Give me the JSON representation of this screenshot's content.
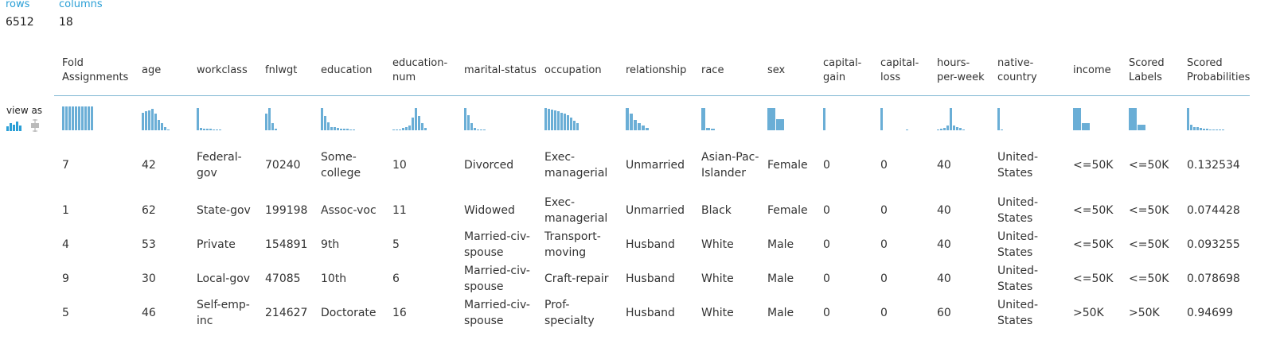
{
  "stats": [
    {
      "label": "rows",
      "value": "6512"
    },
    {
      "label": "columns",
      "value": "18"
    }
  ],
  "view_as": {
    "label": "view as",
    "icons": [
      "histogram-icon",
      "boxplot-icon"
    ]
  },
  "accent_color": "#2a9fd6",
  "bar_color": "#6aaed6",
  "columns": [
    {
      "name": "Fold Assignments",
      "hist": [
        1,
        1,
        1,
        1,
        1,
        1,
        1,
        1,
        1,
        1
      ],
      "bw": 3
    },
    {
      "name": "age",
      "hist": [
        0.75,
        0.8,
        0.85,
        0.9,
        0.7,
        0.45,
        0.3,
        0.15,
        0.05
      ],
      "bw": 3
    },
    {
      "name": "workclass",
      "hist": [
        0.95,
        0.1,
        0.08,
        0.07,
        0.06,
        0.05,
        0.04,
        0.04
      ],
      "bw": 3
    },
    {
      "name": "fnlwgt",
      "hist": [
        0.7,
        0.95,
        0.3,
        0.08
      ],
      "bw": 3
    },
    {
      "name": "education",
      "hist": [
        0.95,
        0.6,
        0.35,
        0.15,
        0.12,
        0.1,
        0.08,
        0.07,
        0.06,
        0.05,
        0.05
      ],
      "bw": 3
    },
    {
      "name": "education-num",
      "hist": [
        0.02,
        0.03,
        0.05,
        0.1,
        0.15,
        0.2,
        0.55,
        0.95,
        0.6,
        0.3,
        0.1
      ],
      "bw": 3
    },
    {
      "name": "marital-status",
      "hist": [
        0.95,
        0.65,
        0.3,
        0.1,
        0.05,
        0.04,
        0.03
      ],
      "bw": 3
    },
    {
      "name": "occupation",
      "hist": [
        0.95,
        0.9,
        0.88,
        0.85,
        0.8,
        0.75,
        0.7,
        0.65,
        0.55,
        0.4,
        0.3
      ],
      "bw": 3
    },
    {
      "name": "relationship",
      "hist": [
        0.95,
        0.7,
        0.45,
        0.3,
        0.2,
        0.1
      ],
      "bw": 4
    },
    {
      "name": "race",
      "hist": [
        0.95,
        0.1,
        0.06
      ],
      "bw": 5
    },
    {
      "name": "sex",
      "hist": [
        0.95,
        0.48
      ],
      "bw": 10
    },
    {
      "name": "capital-gain",
      "hist": [
        0.95
      ],
      "bw": 3
    },
    {
      "name": "capital-loss",
      "hist": [
        0.95,
        0,
        0,
        0,
        0,
        0,
        0,
        0,
        0.04
      ],
      "bw": 3
    },
    {
      "name": "hours-per-week",
      "hist": [
        0.04,
        0.06,
        0.1,
        0.2,
        0.95,
        0.2,
        0.15,
        0.1,
        0.05
      ],
      "bw": 3
    },
    {
      "name": "native-country",
      "hist": [
        0.95,
        0.04
      ],
      "bw": 3
    },
    {
      "name": "income",
      "hist": [
        0.95,
        0.3
      ],
      "bw": 10
    },
    {
      "name": "Scored Labels",
      "hist": [
        0.95,
        0.25
      ],
      "bw": 10
    },
    {
      "name": "Scored Probabilities",
      "hist": [
        0.95,
        0.25,
        0.15,
        0.12,
        0.1,
        0.08,
        0.06,
        0.05,
        0.05,
        0.04,
        0.04,
        0.03
      ],
      "bw": 3
    }
  ],
  "rows": [
    [
      "7",
      "42",
      "Federal-gov",
      "70240",
      "Some-college",
      "10",
      "Divorced",
      "Exec-managerial",
      "Unmarried",
      "Asian-Pac-Islander",
      "Female",
      "0",
      "0",
      "40",
      "United-States",
      "<=50K",
      "<=50K",
      "0.132534"
    ],
    [
      "1",
      "62",
      "State-gov",
      "199198",
      "Assoc-voc",
      "11",
      "Widowed",
      "Exec-managerial",
      "Unmarried",
      "Black",
      "Female",
      "0",
      "0",
      "40",
      "United-States",
      "<=50K",
      "<=50K",
      "0.074428"
    ],
    [
      "4",
      "53",
      "Private",
      "154891",
      "9th",
      "5",
      "Married-civ-spouse",
      "Transport-moving",
      "Husband",
      "White",
      "Male",
      "0",
      "0",
      "40",
      "United-States",
      "<=50K",
      "<=50K",
      "0.093255"
    ],
    [
      "9",
      "30",
      "Local-gov",
      "47085",
      "10th",
      "6",
      "Married-civ-spouse",
      "Craft-repair",
      "Husband",
      "White",
      "Male",
      "0",
      "0",
      "40",
      "United-States",
      "<=50K",
      "<=50K",
      "0.078698"
    ],
    [
      "5",
      "46",
      "Self-emp-inc",
      "214627",
      "Doctorate",
      "16",
      "Married-civ-spouse",
      "Prof-specialty",
      "Husband",
      "White",
      "Male",
      "0",
      "0",
      "60",
      "United-States",
      ">50K",
      ">50K",
      "0.94699"
    ]
  ]
}
